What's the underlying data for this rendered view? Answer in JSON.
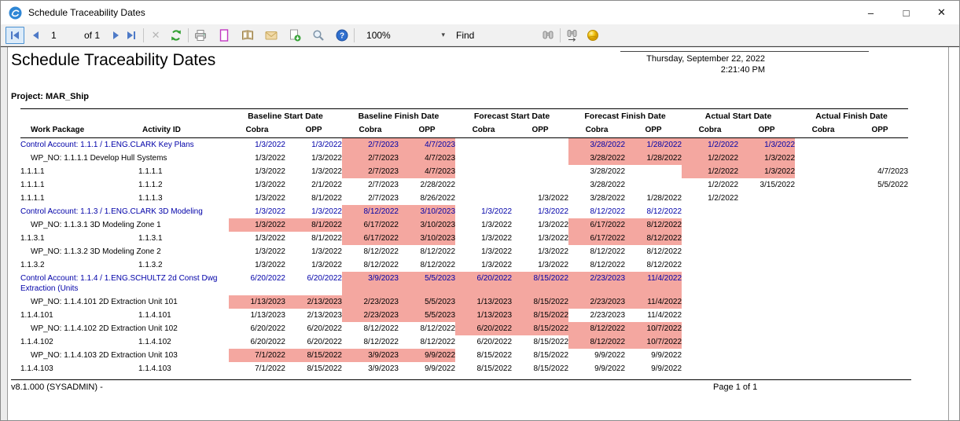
{
  "window": {
    "title": "Schedule Traceability Dates",
    "minimize": "–",
    "maximize": "□",
    "close": "✕"
  },
  "toolbar": {
    "page_value": "1",
    "of_label": "of 1",
    "cancel_glyph": "✕",
    "zoom_value": "100%",
    "caret_glyph": "▾",
    "find_label": "Find",
    "icons": [
      "first-page-icon",
      "prev-page-icon",
      "next-page-icon",
      "last-page-icon",
      "cancel-icon",
      "refresh-icon",
      "print-icon",
      "print-layout-icon",
      "page-setup-icon",
      "email-icon",
      "export-icon",
      "magnifier-icon",
      "help-icon",
      "binoculars-icon",
      "find-next-icon",
      "cobra-ball-icon"
    ]
  },
  "report": {
    "title": "Schedule Traceability Dates",
    "timestamp_date": "Thursday, September 22, 2022",
    "timestamp_time": "2:21:40 PM",
    "project": "Project: MAR_Ship",
    "version": "v8.1.000 (SYSADMIN) -",
    "page_info": "Page 1 of 1"
  },
  "colors": {
    "highlight": "#F4A7A0",
    "control_account_blue": "#0000A8",
    "nav_arrow_blue": "#4E7AC7"
  },
  "table": {
    "left_headers": [
      "Work Package",
      "Activity ID"
    ],
    "group_headers": [
      "Baseline Start Date",
      "Baseline Finish Date",
      "Forecast Start Date",
      "Forecast Finish Date",
      "Actual Start Date",
      "Actual Finish Date"
    ],
    "sub_headers": [
      "Cobra",
      "OPP",
      "Cobra",
      "OPP",
      "Cobra",
      "OPP",
      "Cobra",
      "OPP",
      "Cobra",
      "OPP",
      "Cobra",
      "OPP"
    ],
    "rows": [
      {
        "type": "ca",
        "label": "Control Account: 1.1.1 / 1.ENG.CLARK Key Plans",
        "dates": [
          "1/3/2022",
          "1/3/2022",
          "2/7/2023",
          "4/7/2023",
          "",
          "",
          "3/28/2022",
          "1/28/2022",
          "1/2/2022",
          "1/3/2022",
          "",
          ""
        ],
        "hl": [
          0,
          0,
          1,
          1,
          0,
          0,
          1,
          1,
          1,
          1,
          0,
          0
        ]
      },
      {
        "type": "wp",
        "label": "WP_NO: 1.1.1.1 Develop Hull Systems",
        "dates": [
          "1/3/2022",
          "1/3/2022",
          "2/7/2023",
          "4/7/2023",
          "",
          "",
          "3/28/2022",
          "1/28/2022",
          "1/2/2022",
          "1/3/2022",
          "",
          ""
        ],
        "hl": [
          0,
          0,
          1,
          1,
          0,
          0,
          1,
          1,
          1,
          1,
          0,
          0
        ]
      },
      {
        "type": "detail",
        "wp": "1.1.1.1",
        "activity": "1.1.1.1",
        "dates": [
          "1/3/2022",
          "1/3/2022",
          "2/7/2023",
          "4/7/2023",
          "",
          "",
          "3/28/2022",
          "",
          "1/2/2022",
          "1/3/2022",
          "",
          "4/7/2023"
        ],
        "hl": [
          0,
          0,
          1,
          1,
          0,
          0,
          0,
          0,
          1,
          1,
          0,
          0
        ]
      },
      {
        "type": "detail",
        "wp": "1.1.1.1",
        "activity": "1.1.1.2",
        "dates": [
          "1/3/2022",
          "2/1/2022",
          "2/7/2023",
          "2/28/2022",
          "",
          "",
          "3/28/2022",
          "",
          "1/2/2022",
          "3/15/2022",
          "",
          "5/5/2022"
        ],
        "hl": [
          0,
          0,
          0,
          0,
          0,
          0,
          0,
          0,
          0,
          0,
          0,
          0
        ]
      },
      {
        "type": "detail",
        "wp": "1.1.1.1",
        "activity": "1.1.1.3",
        "dates": [
          "1/3/2022",
          "8/1/2022",
          "2/7/2023",
          "8/26/2022",
          "",
          "1/3/2022",
          "3/28/2022",
          "1/28/2022",
          "1/2/2022",
          "",
          "",
          ""
        ],
        "hl": [
          0,
          0,
          0,
          0,
          0,
          0,
          0,
          0,
          0,
          0,
          0,
          0
        ]
      },
      {
        "type": "ca",
        "label": "Control Account: 1.1.3 / 1.ENG.CLARK 3D Modeling",
        "dates": [
          "1/3/2022",
          "1/3/2022",
          "8/12/2022",
          "3/10/2023",
          "1/3/2022",
          "1/3/2022",
          "8/12/2022",
          "8/12/2022",
          "",
          "",
          "",
          ""
        ],
        "hl": [
          0,
          0,
          1,
          1,
          0,
          0,
          0,
          0,
          0,
          0,
          0,
          0
        ]
      },
      {
        "type": "wp",
        "label": "WP_NO: 1.1.3.1 3D Modeling Zone 1",
        "dates": [
          "1/3/2022",
          "8/1/2022",
          "6/17/2022",
          "3/10/2023",
          "1/3/2022",
          "1/3/2022",
          "6/17/2022",
          "8/12/2022",
          "",
          "",
          "",
          ""
        ],
        "hl": [
          1,
          1,
          1,
          1,
          0,
          0,
          1,
          1,
          0,
          0,
          0,
          0
        ]
      },
      {
        "type": "detail",
        "wp": "1.1.3.1",
        "activity": "1.1.3.1",
        "dates": [
          "1/3/2022",
          "8/1/2022",
          "6/17/2022",
          "3/10/2023",
          "1/3/2022",
          "1/3/2022",
          "6/17/2022",
          "8/12/2022",
          "",
          "",
          "",
          ""
        ],
        "hl": [
          0,
          0,
          1,
          1,
          0,
          0,
          1,
          1,
          0,
          0,
          0,
          0
        ]
      },
      {
        "type": "wp",
        "label": "WP_NO: 1.1.3.2 3D Modeling Zone 2",
        "dates": [
          "1/3/2022",
          "1/3/2022",
          "8/12/2022",
          "8/12/2022",
          "1/3/2022",
          "1/3/2022",
          "8/12/2022",
          "8/12/2022",
          "",
          "",
          "",
          ""
        ],
        "hl": [
          0,
          0,
          0,
          0,
          0,
          0,
          0,
          0,
          0,
          0,
          0,
          0
        ]
      },
      {
        "type": "detail",
        "wp": "1.1.3.2",
        "activity": "1.1.3.2",
        "dates": [
          "1/3/2022",
          "1/3/2022",
          "8/12/2022",
          "8/12/2022",
          "1/3/2022",
          "1/3/2022",
          "8/12/2022",
          "8/12/2022",
          "",
          "",
          "",
          ""
        ],
        "hl": [
          0,
          0,
          0,
          0,
          0,
          0,
          0,
          0,
          0,
          0,
          0,
          0
        ]
      },
      {
        "type": "ca",
        "label": "Control Account: 1.1.4 / 1.ENG.SCHULTZ 2d Const Dwg Extraction (Units",
        "dates": [
          "6/20/2022",
          "6/20/2022",
          "3/9/2023",
          "5/5/2023",
          "6/20/2022",
          "8/15/2022",
          "2/23/2023",
          "11/4/2022",
          "",
          "",
          "",
          ""
        ],
        "hl": [
          0,
          0,
          1,
          1,
          1,
          1,
          1,
          1,
          0,
          0,
          0,
          0
        ]
      },
      {
        "type": "wp",
        "label": "WP_NO: 1.1.4.101 2D Extraction Unit 101",
        "dates": [
          "1/13/2023",
          "2/13/2023",
          "2/23/2023",
          "5/5/2023",
          "1/13/2023",
          "8/15/2022",
          "2/23/2023",
          "11/4/2022",
          "",
          "",
          "",
          ""
        ],
        "hl": [
          1,
          1,
          1,
          1,
          1,
          1,
          1,
          1,
          0,
          0,
          0,
          0
        ]
      },
      {
        "type": "detail",
        "wp": "1.1.4.101",
        "activity": "1.1.4.101",
        "dates": [
          "1/13/2023",
          "2/13/2023",
          "2/23/2023",
          "5/5/2023",
          "1/13/2023",
          "8/15/2022",
          "2/23/2023",
          "11/4/2022",
          "",
          "",
          "",
          ""
        ],
        "hl": [
          0,
          0,
          1,
          1,
          1,
          1,
          0,
          0,
          0,
          0,
          0,
          0
        ]
      },
      {
        "type": "wp",
        "label": "WP_NO: 1.1.4.102 2D Extraction Unit 102",
        "dates": [
          "6/20/2022",
          "6/20/2022",
          "8/12/2022",
          "8/12/2022",
          "6/20/2022",
          "8/15/2022",
          "8/12/2022",
          "10/7/2022",
          "",
          "",
          "",
          ""
        ],
        "hl": [
          0,
          0,
          0,
          0,
          1,
          1,
          1,
          1,
          0,
          0,
          0,
          0
        ]
      },
      {
        "type": "detail",
        "wp": "1.1.4.102",
        "activity": "1.1.4.102",
        "dates": [
          "6/20/2022",
          "6/20/2022",
          "8/12/2022",
          "8/12/2022",
          "6/20/2022",
          "8/15/2022",
          "8/12/2022",
          "10/7/2022",
          "",
          "",
          "",
          ""
        ],
        "hl": [
          0,
          0,
          0,
          0,
          0,
          0,
          1,
          1,
          0,
          0,
          0,
          0
        ]
      },
      {
        "type": "wp",
        "label": "WP_NO: 1.1.4.103 2D Extraction Unit 103",
        "dates": [
          "7/1/2022",
          "8/15/2022",
          "3/9/2023",
          "9/9/2022",
          "8/15/2022",
          "8/15/2022",
          "9/9/2022",
          "9/9/2022",
          "",
          "",
          "",
          ""
        ],
        "hl": [
          1,
          1,
          1,
          1,
          0,
          0,
          0,
          0,
          0,
          0,
          0,
          0
        ]
      },
      {
        "type": "detail",
        "wp": "1.1.4.103",
        "activity": "1.1.4.103",
        "dates": [
          "7/1/2022",
          "8/15/2022",
          "3/9/2023",
          "9/9/2022",
          "8/15/2022",
          "8/15/2022",
          "9/9/2022",
          "9/9/2022",
          "",
          "",
          "",
          ""
        ],
        "hl": [
          0,
          0,
          0,
          0,
          0,
          0,
          0,
          0,
          0,
          0,
          0,
          0
        ]
      }
    ]
  }
}
